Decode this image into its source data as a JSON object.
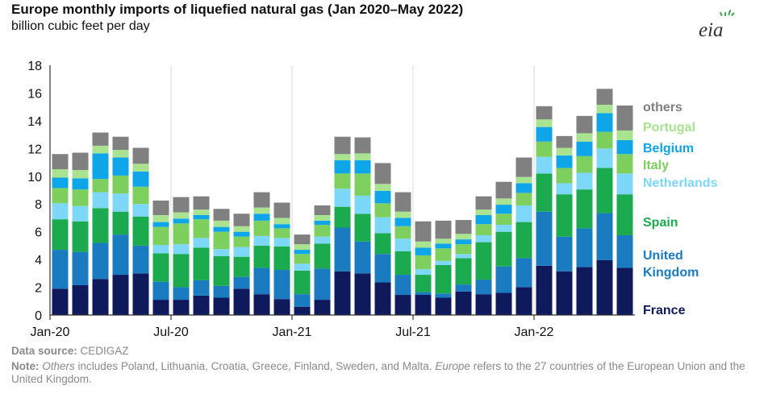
{
  "header": {
    "title": "Europe monthly imports of liquefied natural gas (Jan 2020–May 2022)",
    "subtitle": "billion cubic feet per day",
    "logo_text": "eia"
  },
  "footer": {
    "source_label": "Data source:",
    "source_text": "CEDIGAZ",
    "note_label": "Note:",
    "note_others_word": "Others",
    "note_text1": "includes Poland, Lithuania, Croatia, Greece, Finland, Sweden, and Malta.",
    "note_europe_word": "Europe",
    "note_text2": "refers to the 27 countries of the European Union and the United Kingdom."
  },
  "chart_data": {
    "type": "bar",
    "stacked": true,
    "ylim": [
      0,
      18
    ],
    "yticks": [
      0,
      2,
      4,
      6,
      8,
      10,
      12,
      14,
      16,
      18
    ],
    "grid": "vertical lines at January and July",
    "xtick_labels": [
      {
        "index": 0,
        "label": "Jan-20"
      },
      {
        "index": 6,
        "label": "Jul-20"
      },
      {
        "index": 12,
        "label": "Jan-21"
      },
      {
        "index": 18,
        "label": "Jul-21"
      },
      {
        "index": 24,
        "label": "Jan-22"
      }
    ],
    "categories": [
      "Jan-20",
      "Feb-20",
      "Mar-20",
      "Apr-20",
      "May-20",
      "Jun-20",
      "Jul-20",
      "Aug-20",
      "Sep-20",
      "Oct-20",
      "Nov-20",
      "Dec-20",
      "Jan-21",
      "Feb-21",
      "Mar-21",
      "Apr-21",
      "May-21",
      "Jun-21",
      "Jul-21",
      "Aug-21",
      "Sep-21",
      "Oct-21",
      "Nov-21",
      "Dec-21",
      "Jan-22",
      "Feb-22",
      "Mar-22",
      "Apr-22",
      "May-22"
    ],
    "legend_placement": "right",
    "series": [
      {
        "name": "France",
        "label_lines": [
          "France"
        ],
        "color": "#0f1a5c",
        "values": [
          1.9,
          2.15,
          2.6,
          2.9,
          3.0,
          1.1,
          1.1,
          1.4,
          1.25,
          1.9,
          1.5,
          1.15,
          0.6,
          1.1,
          3.15,
          3.0,
          2.35,
          1.45,
          1.45,
          1.25,
          1.7,
          1.5,
          1.6,
          2.0,
          3.55,
          3.15,
          3.45,
          3.95,
          3.4
        ]
      },
      {
        "name": "United Kingdom",
        "label_lines": [
          "United",
          "Kingdom"
        ],
        "color": "#1a7bc0",
        "values": [
          2.8,
          2.4,
          2.6,
          2.9,
          2.0,
          1.3,
          0.9,
          1.1,
          0.85,
          0.85,
          1.9,
          2.1,
          0.9,
          2.25,
          3.15,
          2.3,
          2.05,
          1.45,
          0.2,
          0.3,
          0.5,
          1.05,
          1.9,
          2.1,
          3.9,
          2.5,
          2.8,
          3.4,
          2.35
        ]
      },
      {
        "name": "Spain",
        "label_lines": [
          "Spain"
        ],
        "color": "#1bab4e",
        "values": [
          2.2,
          2.2,
          2.5,
          1.65,
          2.1,
          2.05,
          2.4,
          2.35,
          2.15,
          1.45,
          1.6,
          1.7,
          1.7,
          1.8,
          1.5,
          2.0,
          1.5,
          1.7,
          1.25,
          2.05,
          1.9,
          2.7,
          2.5,
          2.6,
          2.75,
          3.05,
          2.8,
          3.25,
          2.95
        ]
      },
      {
        "name": "Netherlands",
        "label_lines": [
          "Netherlands"
        ],
        "color": "#7dd7f7",
        "values": [
          1.15,
          1.1,
          1.15,
          1.3,
          0.9,
          0.6,
          0.7,
          0.7,
          0.5,
          0.7,
          0.7,
          0.6,
          0.5,
          0.5,
          1.3,
          1.3,
          1.15,
          0.9,
          0.4,
          0.3,
          0.3,
          0.5,
          0.5,
          1.2,
          1.2,
          0.8,
          1.2,
          1.4,
          1.5
        ]
      },
      {
        "name": "Italy",
        "label_lines": [
          "Italy"
        ],
        "color": "#7dcf5e",
        "values": [
          1.1,
          1.2,
          0.95,
          1.3,
          1.25,
          1.3,
          1.5,
          1.35,
          1.25,
          0.75,
          1.1,
          0.7,
          0.7,
          0.85,
          1.1,
          1.6,
          1.0,
          0.9,
          1.0,
          0.9,
          0.7,
          0.8,
          0.8,
          0.9,
          1.1,
          1.1,
          1.2,
          1.2,
          1.4
        ]
      },
      {
        "name": "Belgium",
        "label_lines": [
          "Belgium"
        ],
        "color": "#0ea5e9",
        "values": [
          0.75,
          0.8,
          1.85,
          1.3,
          1.1,
          0.35,
          0.35,
          0.3,
          0.35,
          0.35,
          0.5,
          0.3,
          0.3,
          0.3,
          0.95,
          0.95,
          0.9,
          0.6,
          0.55,
          0.35,
          0.35,
          0.65,
          0.65,
          0.7,
          1.05,
          0.9,
          1.05,
          1.35,
          1.0
        ]
      },
      {
        "name": "Portugal",
        "label_lines": [
          "Portugal"
        ],
        "color": "#a9e38f",
        "values": [
          0.6,
          0.6,
          0.55,
          0.55,
          0.55,
          0.5,
          0.45,
          0.4,
          0.45,
          0.4,
          0.45,
          0.45,
          0.4,
          0.4,
          0.45,
          0.5,
          0.5,
          0.45,
          0.45,
          0.35,
          0.4,
          0.4,
          0.45,
          0.45,
          0.55,
          0.55,
          0.6,
          0.6,
          0.7
        ]
      },
      {
        "name": "others",
        "label_lines": [
          "others"
        ],
        "color": "#808080",
        "values": [
          1.1,
          1.25,
          0.95,
          0.95,
          1.15,
          1.05,
          1.1,
          0.95,
          0.85,
          0.9,
          1.1,
          1.1,
          0.7,
          0.7,
          1.25,
          1.15,
          1.5,
          1.4,
          1.45,
          1.3,
          1.0,
          0.95,
          1.2,
          1.4,
          0.95,
          0.85,
          1.25,
          1.15,
          1.8
        ]
      }
    ]
  }
}
